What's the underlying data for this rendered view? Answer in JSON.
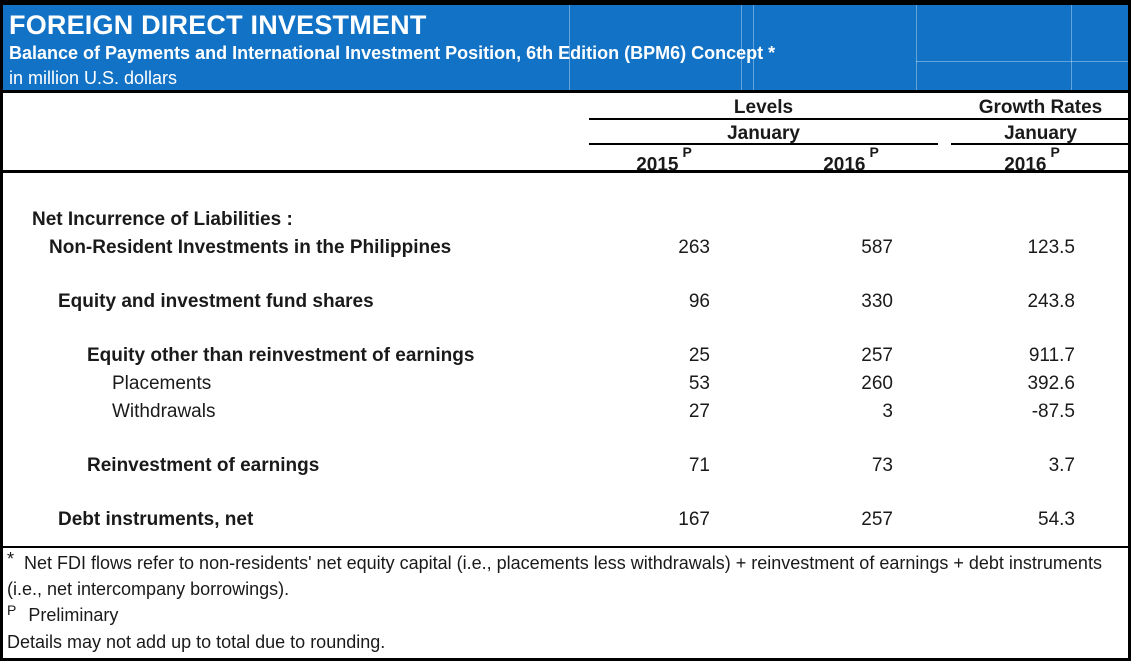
{
  "banner": {
    "title": "FOREIGN DIRECT INVESTMENT",
    "subtitle": "Balance of Payments and International Investment Position, 6th Edition (BPM6) Concept *",
    "unit_line": "in million U.S. dollars",
    "bg_color": "#1273C6"
  },
  "header": {
    "levels_label": "Levels",
    "growth_label": "Growth Rates",
    "levels_period": "January",
    "growth_period": "January",
    "levels_year_1": "2015",
    "levels_year_2": "2016",
    "growth_year": "2016",
    "preliminary_marker": "P"
  },
  "table": {
    "rows": [
      {
        "label": "Net Incurrence of Liabilities :",
        "bold": true,
        "indent": 0,
        "values": [
          "",
          "",
          ""
        ]
      },
      {
        "label": "Non-Resident Investments in the Philippines",
        "bold": true,
        "indent": 1,
        "values": [
          "263",
          "587",
          "123.5"
        ]
      },
      {
        "spacer": true
      },
      {
        "label": "Equity and investment fund shares",
        "bold": true,
        "indent": 2,
        "values": [
          "96",
          "330",
          "243.8"
        ]
      },
      {
        "spacer": true
      },
      {
        "label": "Equity other than reinvestment of earnings",
        "bold": true,
        "indent": 3,
        "values": [
          "25",
          "257",
          "911.7"
        ]
      },
      {
        "label": "Placements",
        "bold": false,
        "indent": 4,
        "values": [
          "53",
          "260",
          "392.6"
        ]
      },
      {
        "label": "Withdrawals",
        "bold": false,
        "indent": 4,
        "values": [
          "27",
          "3",
          "-87.5"
        ]
      },
      {
        "spacer": true
      },
      {
        "label": "Reinvestment of earnings",
        "bold": true,
        "indent": 3,
        "values": [
          "71",
          "73",
          "3.7"
        ]
      },
      {
        "spacer": true
      },
      {
        "label": "Debt instruments, net",
        "bold": true,
        "indent": 2,
        "values": [
          "167",
          "257",
          "54.3"
        ]
      }
    ]
  },
  "footnotes": {
    "star_marker": "*",
    "star_text": "Net FDI flows refer to non-residents' net equity capital (i.e., placements less withdrawals) + reinvestment of earnings + debt instruments (i.e., net intercompany borrowings).",
    "preliminary_marker": "P",
    "preliminary_text": "Preliminary",
    "rounding_note": "Details may not add up to total due to rounding."
  }
}
